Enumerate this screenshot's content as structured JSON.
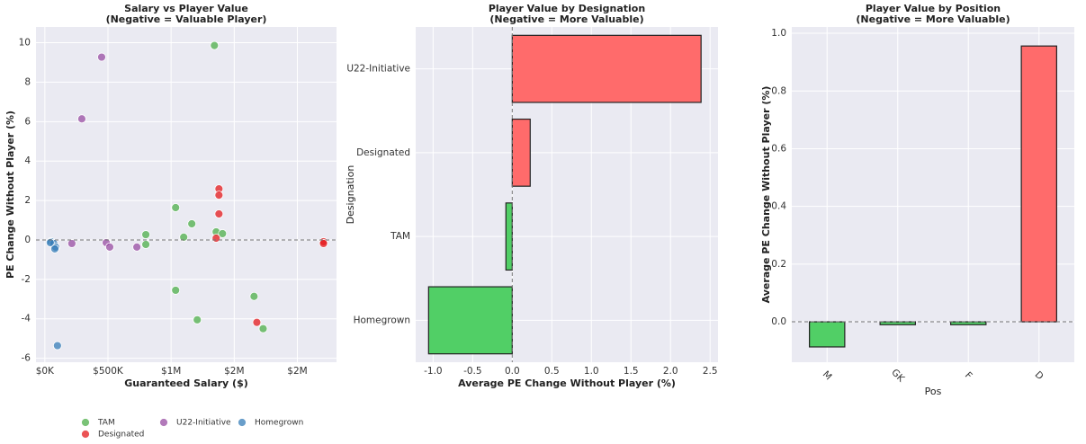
{
  "chart_data": [
    {
      "type": "scatter",
      "title": "Salary vs Player Value",
      "subtitle": "(Negative = Valuable Player)",
      "x_label": "Guaranteed Salary ($)",
      "y_label": "PE Change Without Player (%)",
      "xlim": [
        -70000,
        2310000
      ],
      "xticks": [
        {
          "value": 0,
          "label": "$0K"
        },
        {
          "value": 500000,
          "label": "$500K"
        },
        {
          "value": 1000000,
          "label": "$1M"
        },
        {
          "value": 1500000,
          "label": "$2M"
        },
        {
          "value": 2000000,
          "label": "$2M"
        }
      ],
      "ylim": [
        -6.2,
        10.8
      ],
      "yticks": [
        -6,
        -4,
        -2,
        0,
        2,
        4,
        6,
        8,
        10
      ],
      "grid": true,
      "reference_line": 0,
      "legend_loc": "below",
      "legend_columns": 3,
      "series": [
        {
          "name": "TAM",
          "color": "#4daf4a",
          "x": [
            1343000,
            1036000,
            1164000,
            800000,
            800000,
            1100000,
            1357000,
            1407000,
            1036000,
            1207000,
            1657000,
            1729000
          ],
          "values": [
            9.86,
            1.64,
            0.82,
            0.27,
            -0.23,
            0.14,
            0.41,
            0.32,
            -2.55,
            -4.05,
            -2.86,
            -4.5
          ]
        },
        {
          "name": "Designated",
          "color": "#e41a1c",
          "x": [
            1379000,
            1379000,
            1379000,
            1357000,
            1679000,
            2207000,
            2207000
          ],
          "values": [
            2.59,
            2.27,
            1.32,
            0.09,
            -4.18,
            -0.09,
            -0.18
          ]
        },
        {
          "name": "U22-Initiative",
          "color": "#984ea3",
          "x": [
            450000,
            293000,
            214000,
            486000,
            514000,
            729000
          ],
          "values": [
            9.27,
            6.14,
            -0.18,
            -0.14,
            -0.36,
            -0.36
          ]
        },
        {
          "name": "Homegrown",
          "color": "#377eb8",
          "x": [
            50000,
            71000,
            86000,
            79000,
            100000,
            43000
          ],
          "values": [
            -0.09,
            -0.18,
            -0.36,
            -0.45,
            -5.36,
            -0.14
          ]
        }
      ]
    },
    {
      "type": "hbar",
      "title": "Player Value by Designation",
      "subtitle": "(Negative = More Valuable)",
      "x_label": "Average PE Change Without Player (%)",
      "y_label": "Designation",
      "categories": [
        "Homegrown",
        "TAM",
        "Designated",
        "U22-Initiative"
      ],
      "values": [
        -1.057,
        -0.08,
        0.227,
        2.386
      ],
      "colors": [
        "#51cf66",
        "#51cf66",
        "#ff6b6b",
        "#ff6b6b"
      ],
      "xlim": [
        -1.22,
        2.6
      ],
      "xticks": [
        {
          "value": -1,
          "label": "-1.0"
        },
        -0.5,
        {
          "value": 0,
          "label": "0.0"
        },
        0.5,
        {
          "value": 1,
          "label": "1.0"
        },
        1.5,
        {
          "value": 2,
          "label": "2.0"
        },
        2.5
      ],
      "grid": true,
      "reference_line": 0
    },
    {
      "type": "bar",
      "title": "Player Value by Position",
      "subtitle": "(Negative = More Valuable)",
      "x_label": "Pos",
      "y_label": "Average PE Change Without Player (%)",
      "categories": [
        "M",
        "GK",
        "F",
        "D"
      ],
      "values": [
        -0.087,
        -0.01,
        -0.01,
        0.956
      ],
      "colors": [
        "#51cf66",
        "#51cf66",
        "#51cf66",
        "#ff6b6b"
      ],
      "ylim": [
        -0.14,
        1.022
      ],
      "yticks": [
        {
          "value": 0,
          "label": "0.0"
        },
        0.2,
        0.4,
        0.6,
        0.8,
        {
          "value": 1,
          "label": "1.0"
        }
      ],
      "grid": true,
      "reference_line": 0
    }
  ]
}
